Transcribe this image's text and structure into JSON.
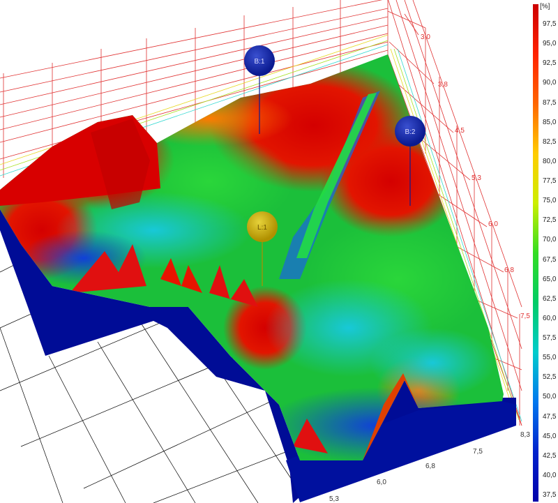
{
  "chart_data": {
    "type": "surface-3d",
    "unit": "[%]",
    "colorbar": {
      "min": 37.5,
      "max": 100,
      "tick_labels": [
        "97,5",
        "95,0",
        "92,5",
        "90,0",
        "87,5",
        "85,0",
        "82,5",
        "80,0",
        "77,5",
        "75,0",
        "72,5",
        "70,0",
        "67,5",
        "65,0",
        "62,5",
        "60,0",
        "57,5",
        "55,0",
        "52,5",
        "50,0",
        "47,5",
        "45,0",
        "42,5",
        "40,0",
        "37,5"
      ],
      "colors": [
        "#cc0000",
        "#ff2200",
        "#ff6600",
        "#ffcc00",
        "#ccee00",
        "#33dd22",
        "#00cc66",
        "#00cccc",
        "#0077ee",
        "#0022cc",
        "#0000aa"
      ]
    },
    "right_axis_ticks": [
      "3,0",
      "3,8",
      "4,5",
      "5,3",
      "6,0",
      "6,8",
      "7,5",
      "8,3"
    ],
    "bottom_axis_ticks": [
      "5,3",
      "6,0",
      "6,8",
      "7,5"
    ],
    "markers": [
      {
        "label": "B:1",
        "color": "#1a2fa0"
      },
      {
        "label": "B:2",
        "color": "#1a2fa0"
      },
      {
        "label": "L:1",
        "color": "#c8b000"
      }
    ],
    "surface_colors": {
      "high": "#d90000",
      "upper": "#ff4400",
      "mid": "#22cc33",
      "lower": "#00cccc",
      "low": "#0033cc",
      "base": "#001199"
    }
  }
}
